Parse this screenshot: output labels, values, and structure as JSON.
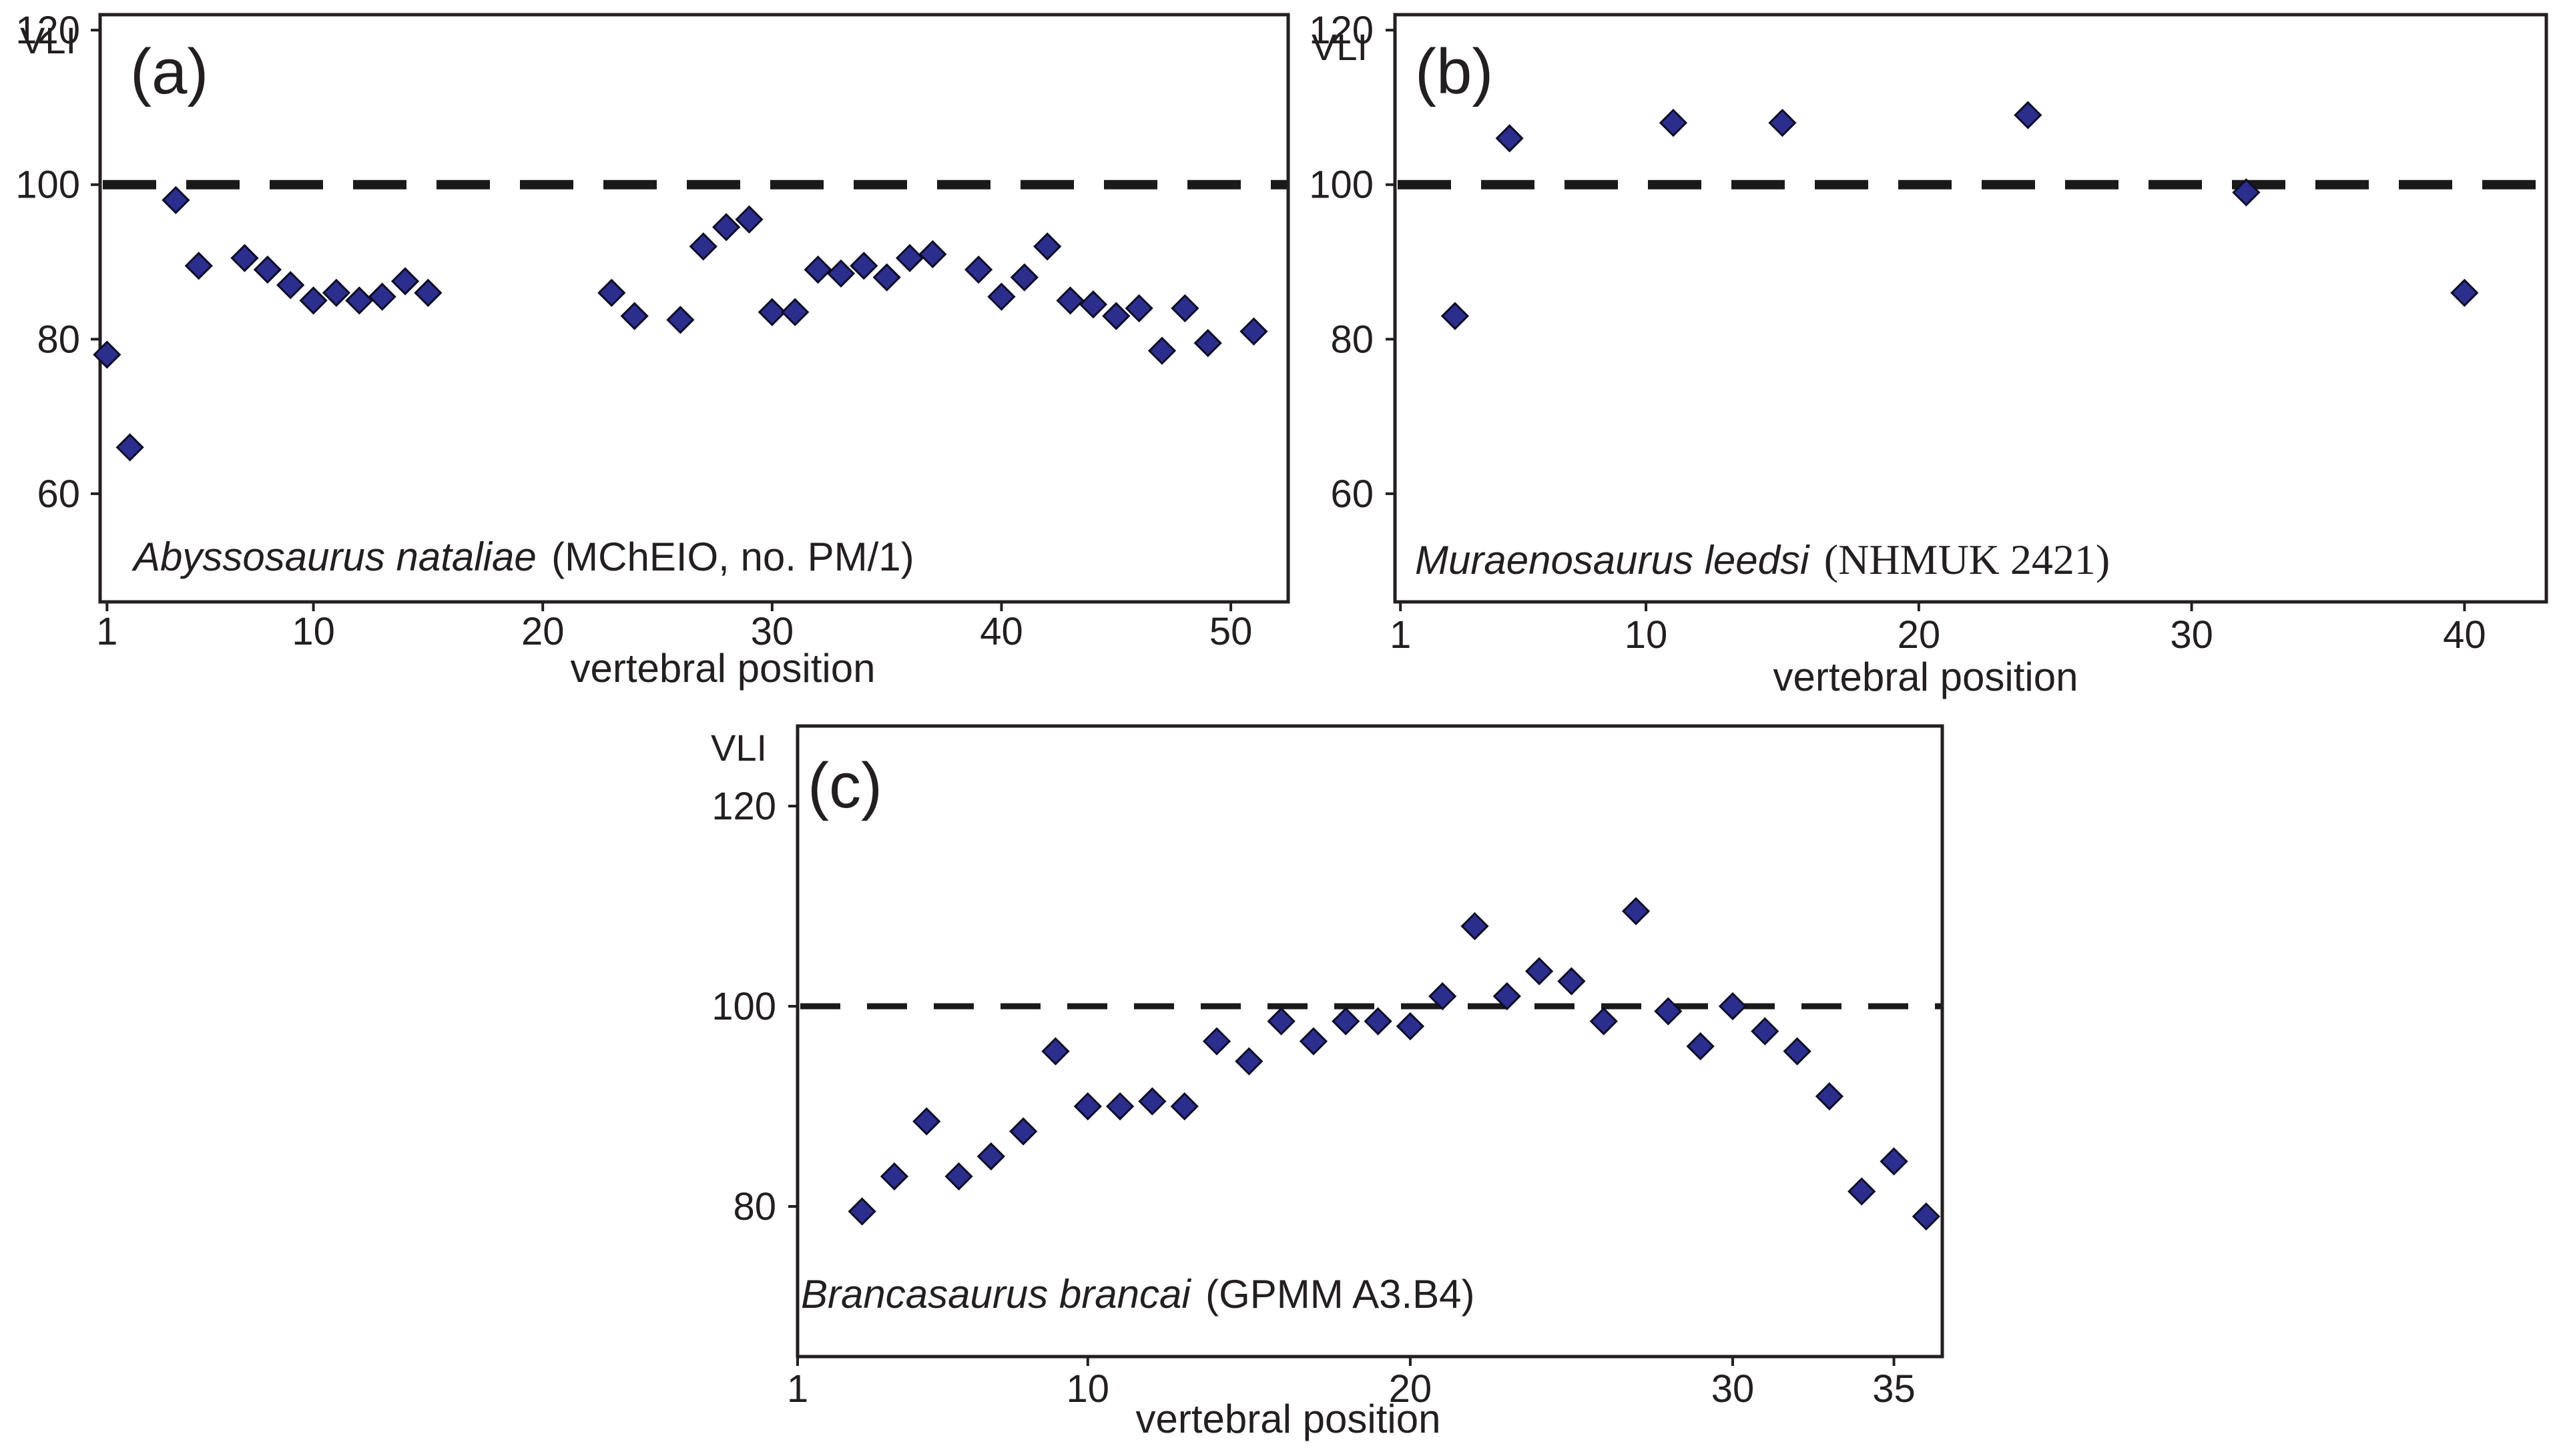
{
  "chart_data": [
    {
      "type": "scatter",
      "id": "a",
      "panel_label": "(a)",
      "ylabel": "VLI",
      "xlabel": "vertebral position",
      "caption_species": "Abyssosaurus nataliae",
      "caption_specimen": "(MChEIO, no. PM/1)",
      "xlim": [
        0.7,
        52.5
      ],
      "ylim": [
        46,
        122
      ],
      "xticks": [
        1,
        10,
        20,
        30,
        40,
        50
      ],
      "xtick_labels": [
        "1",
        "10",
        "20",
        "30",
        "40",
        "50"
      ],
      "yticks": [
        60,
        80,
        100,
        120
      ],
      "ytick_labels": [
        "60",
        "80",
        "100",
        "120"
      ],
      "reference_line": 100,
      "points": [
        [
          1,
          78
        ],
        [
          2,
          66
        ],
        [
          4,
          98
        ],
        [
          5,
          89.5
        ],
        [
          7,
          90.5
        ],
        [
          8,
          89
        ],
        [
          9,
          87
        ],
        [
          10,
          85
        ],
        [
          11,
          86
        ],
        [
          12,
          85
        ],
        [
          13,
          85.5
        ],
        [
          14,
          87.5
        ],
        [
          15,
          86
        ],
        [
          23,
          86
        ],
        [
          24,
          83
        ],
        [
          26,
          82.5
        ],
        [
          27,
          92
        ],
        [
          28,
          94.5
        ],
        [
          29,
          95.5
        ],
        [
          30,
          83.5
        ],
        [
          31,
          83.5
        ],
        [
          32,
          89
        ],
        [
          33,
          88.5
        ],
        [
          34,
          89.5
        ],
        [
          35,
          88
        ],
        [
          36,
          90.5
        ],
        [
          37,
          91
        ],
        [
          39,
          89
        ],
        [
          40,
          85.5
        ],
        [
          41,
          88
        ],
        [
          42,
          92
        ],
        [
          43,
          85
        ],
        [
          44,
          84.5
        ],
        [
          45,
          83
        ],
        [
          46,
          84
        ],
        [
          47,
          78.5
        ],
        [
          48,
          84
        ],
        [
          49,
          79.5
        ],
        [
          51,
          81
        ]
      ]
    },
    {
      "type": "scatter",
      "id": "b",
      "panel_label": "(b)",
      "ylabel": "VLI",
      "xlabel": "vertebral position",
      "caption_species": "Muraenosaurus leedsi",
      "caption_specimen": "(NHMUK 2421)",
      "xlim": [
        0.8,
        43
      ],
      "ylim": [
        46,
        122
      ],
      "xticks": [
        1,
        10,
        20,
        30,
        40
      ],
      "xtick_labels": [
        "1",
        "10",
        "20",
        "30",
        "40"
      ],
      "yticks": [
        60,
        80,
        100,
        120
      ],
      "ytick_labels": [
        "60",
        "80",
        "100",
        "120"
      ],
      "reference_line": 100,
      "points": [
        [
          3,
          83
        ],
        [
          5,
          106
        ],
        [
          11,
          108
        ],
        [
          15,
          108
        ],
        [
          24,
          109
        ],
        [
          32,
          99
        ],
        [
          40,
          86
        ]
      ]
    },
    {
      "type": "scatter",
      "id": "c",
      "panel_label": "(c)",
      "ylabel": "VLI",
      "xlabel": "vertebral position",
      "caption_species": "Brancasaurus brancai",
      "caption_specimen": "(GPMM A3.B4)",
      "xlim": [
        1,
        36.5
      ],
      "ylim": [
        65,
        128
      ],
      "xticks": [
        1,
        10,
        20,
        30,
        35
      ],
      "xtick_labels": [
        "1",
        "10",
        "20",
        "30",
        "35"
      ],
      "yticks": [
        80,
        100,
        120
      ],
      "ytick_labels": [
        "80",
        "100",
        "120"
      ],
      "reference_line": 100,
      "points": [
        [
          3,
          79.5
        ],
        [
          4,
          83
        ],
        [
          5,
          88.5
        ],
        [
          6,
          83
        ],
        [
          7,
          85
        ],
        [
          8,
          87.5
        ],
        [
          9,
          95.5
        ],
        [
          10,
          90
        ],
        [
          11,
          90
        ],
        [
          12,
          90.5
        ],
        [
          13,
          90
        ],
        [
          14,
          96.5
        ],
        [
          15,
          94.5
        ],
        [
          16,
          98.5
        ],
        [
          17,
          96.5
        ],
        [
          18,
          98.5
        ],
        [
          19,
          98.5
        ],
        [
          20,
          98
        ],
        [
          21,
          101
        ],
        [
          22,
          108
        ],
        [
          23,
          101
        ],
        [
          24,
          103.5
        ],
        [
          25,
          102.5
        ],
        [
          26,
          98.5
        ],
        [
          27,
          109.5
        ],
        [
          28,
          99.5
        ],
        [
          29,
          96
        ],
        [
          30,
          100
        ],
        [
          31,
          97.5
        ],
        [
          32,
          95.5
        ],
        [
          33,
          91
        ],
        [
          34,
          81.5
        ],
        [
          35,
          84.5
        ],
        [
          36,
          79
        ]
      ]
    }
  ]
}
